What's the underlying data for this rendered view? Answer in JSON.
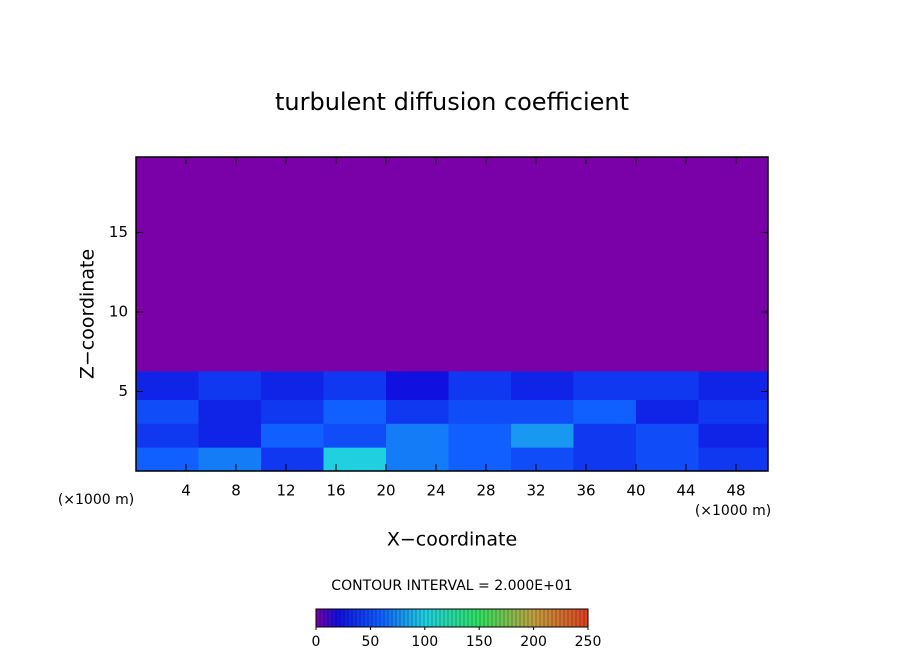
{
  "chart_data": {
    "type": "heatmap",
    "title": "turbulent diffusion coefficient",
    "x_label": "X−coordinate",
    "y_label": "Z−coordinate",
    "x_unit_left": "(×1000 m)",
    "x_unit_right": "(×1000 m)",
    "contour_interval": "CONTOUR INTERVAL = 2.000E+01",
    "xlim": [
      0,
      50.56
    ],
    "ylim": [
      0,
      19.75
    ],
    "xticks": [
      4,
      8,
      12,
      16,
      20,
      24,
      28,
      32,
      36,
      40,
      44,
      48
    ],
    "yticks": [
      5,
      10,
      15
    ],
    "x_edges": [
      0,
      5,
      10,
      15,
      20,
      25,
      30,
      35,
      40,
      45,
      50.56
    ],
    "z_edges": [
      0,
      1.5,
      3,
      4.5,
      6.3,
      19.75
    ],
    "values": [
      [
        60,
        70,
        40,
        100,
        70,
        60,
        50,
        40,
        50,
        40
      ],
      [
        40,
        30,
        60,
        50,
        70,
        60,
        80,
        40,
        50,
        30
      ],
      [
        50,
        30,
        40,
        60,
        40,
        50,
        50,
        60,
        30,
        40
      ],
      [
        30,
        40,
        30,
        40,
        20,
        40,
        30,
        40,
        40,
        30
      ],
      [
        0,
        0,
        0,
        0,
        0,
        0,
        0,
        0,
        0,
        0
      ]
    ],
    "colorbar_lim": [
      0,
      250
    ],
    "colorbar_ticks": [
      0,
      50,
      100,
      150,
      200,
      250
    ],
    "colorscale": [
      [
        0,
        "#7a00a8"
      ],
      [
        20,
        "#1010e0"
      ],
      [
        60,
        "#1060ff"
      ],
      [
        100,
        "#20d0e0"
      ],
      [
        150,
        "#30e060"
      ],
      [
        200,
        "#c0a040"
      ],
      [
        250,
        "#e04020"
      ]
    ]
  }
}
